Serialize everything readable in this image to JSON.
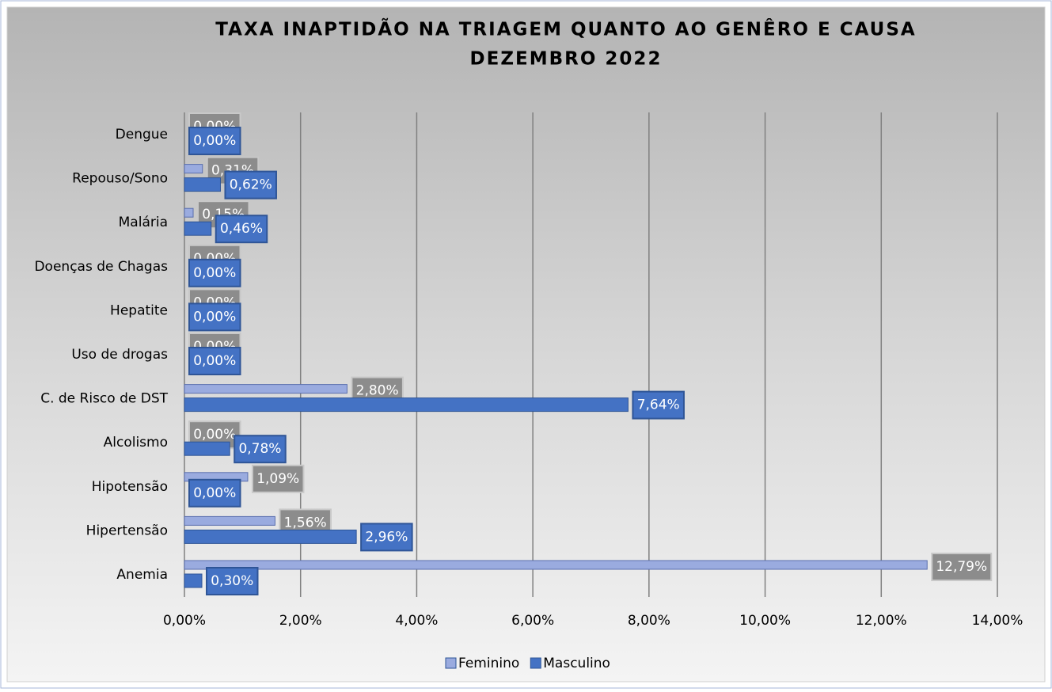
{
  "chart_data": {
    "type": "bar",
    "orientation": "horizontal",
    "title": "TAXA INAPTIDÃO NA TRIAGEM QUANTO AO GENÊRO E CAUSA",
    "subtitle": "DEZEMBRO 2022",
    "categories": [
      "Dengue",
      "Repouso/Sono",
      "Malária",
      "Doenças de Chagas",
      "Hepatite",
      "Uso de drogas",
      "C. de Risco de DST",
      "Alcolismo",
      "Hipotensão",
      "Hipertensão",
      "Anemia"
    ],
    "series": [
      {
        "name": "Feminino",
        "color": "#9aabdf",
        "values": [
          0,
          0.31,
          0.15,
          0,
          0,
          0,
          2.8,
          0,
          1.09,
          1.56,
          12.79
        ],
        "value_labels": [
          "0,00%",
          "0,31%",
          "0,15%",
          "0,00%",
          "0,00%",
          "0,00%",
          "2,80%",
          "0,00%",
          "1,09%",
          "1,56%",
          "12,79%"
        ]
      },
      {
        "name": "Masculino",
        "color": "#4472c4",
        "values": [
          0,
          0.62,
          0.46,
          0,
          0,
          0,
          7.64,
          0.78,
          0,
          2.96,
          0.3
        ],
        "value_labels": [
          "0,00%",
          "0,62%",
          "0,46%",
          "0,00%",
          "0,00%",
          "0,00%",
          "7,64%",
          "0,78%",
          "0,00%",
          "2,96%",
          "0,30%"
        ]
      }
    ],
    "xlim": [
      0,
      14
    ],
    "xticks": [
      {
        "value": 0,
        "label": "0,00%"
      },
      {
        "value": 2,
        "label": "2,00%"
      },
      {
        "value": 4,
        "label": "4,00%"
      },
      {
        "value": 6,
        "label": "6,00%"
      },
      {
        "value": 8,
        "label": "8,00%"
      },
      {
        "value": 10,
        "label": "10,00%"
      },
      {
        "value": 12,
        "label": "12,00%"
      },
      {
        "value": 14,
        "label": "14,00%"
      }
    ],
    "grid": true,
    "legend": "bottom"
  }
}
